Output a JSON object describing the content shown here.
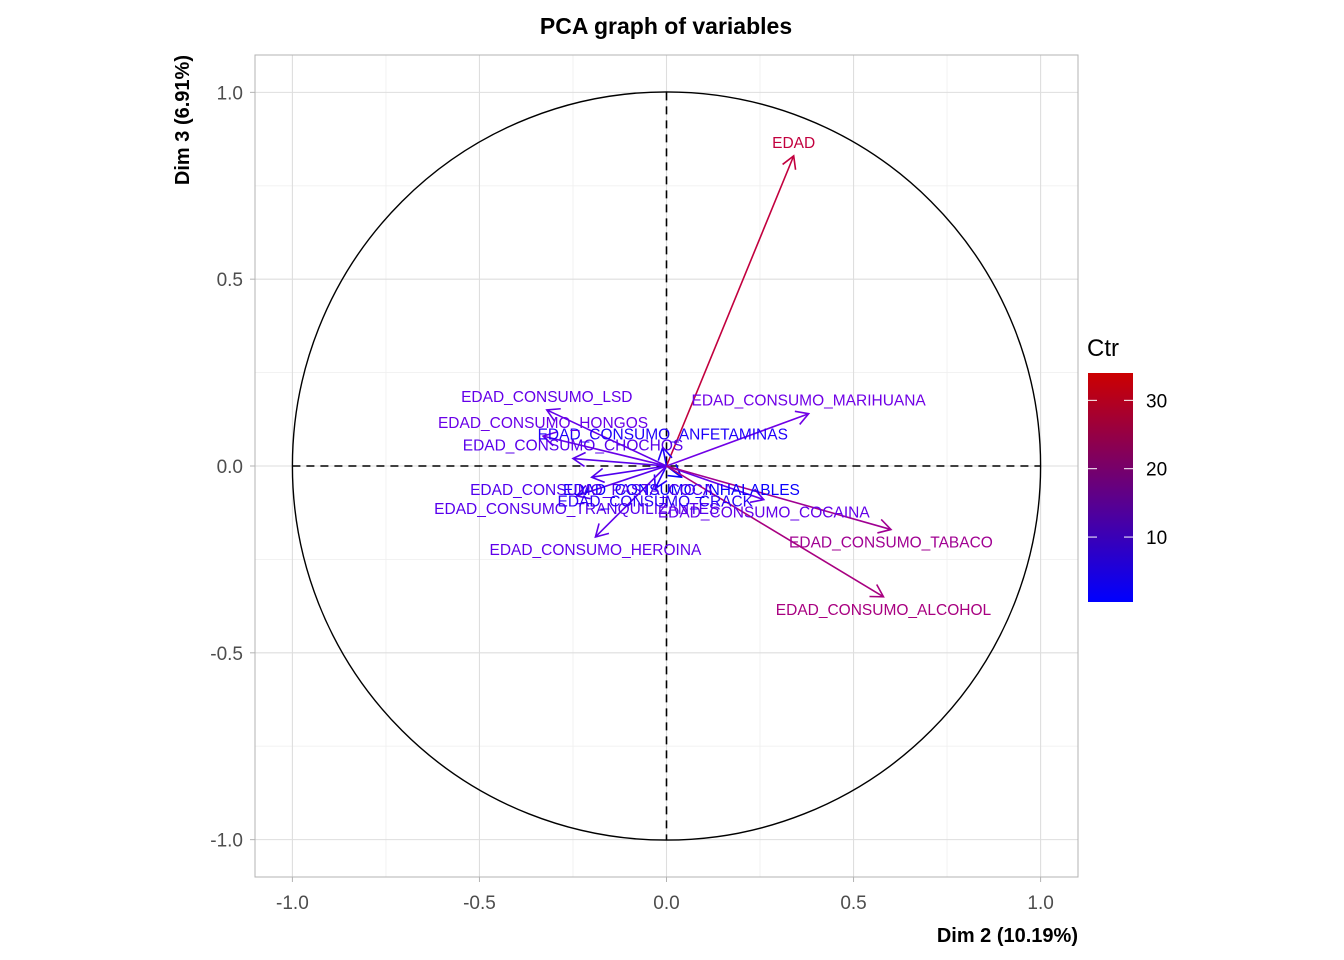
{
  "chart_data": {
    "type": "scatter",
    "subtype": "pca-variable-correlation-circle",
    "title": "PCA graph of variables",
    "xlabel": "Dim 2 (10.19%)",
    "ylabel": "Dim 3 (6.91%)",
    "xlim": [
      -1.1,
      1.1
    ],
    "ylim": [
      -1.1,
      1.1
    ],
    "x_ticks": [
      -1.0,
      -0.5,
      0.0,
      0.5,
      1.0
    ],
    "x_tick_labels": [
      "-1.0",
      "-0.5",
      "0.0",
      "0.5",
      "1.0"
    ],
    "y_ticks": [
      -1.0,
      -0.5,
      0.0,
      0.5,
      1.0
    ],
    "y_tick_labels": [
      "-1.0",
      "-0.5",
      "0.0",
      "0.5",
      "1.0"
    ],
    "grid": true,
    "unit_circle": true,
    "variables": [
      {
        "name": "EDAD",
        "x": 0.34,
        "y": 0.83,
        "ctr": 33,
        "color": "#c2003e"
      },
      {
        "name": "EDAD_CONSUMO_MARIHUANA",
        "x": 0.38,
        "y": 0.14,
        "ctr": 5,
        "color": "#7000e6"
      },
      {
        "name": "EDAD_CONSUMO_LSD",
        "x": -0.32,
        "y": 0.15,
        "ctr": 4,
        "color": "#6400e9"
      },
      {
        "name": "EDAD_CONSUMO_ANFETAMINAS",
        "x": -0.01,
        "y": 0.05,
        "ctr": 1,
        "color": "#1e00fa"
      },
      {
        "name": "EDAD_CONSUMO_HONGOS",
        "x": -0.33,
        "y": 0.08,
        "ctr": 4,
        "color": "#6a00e8"
      },
      {
        "name": "EDAD_CONSUMO_CHOCHOS",
        "x": -0.25,
        "y": 0.02,
        "ctr": 3,
        "color": "#5a00eb"
      },
      {
        "name": "EDAD_CONSUMO_INHALABLES",
        "x": 0.04,
        "y": -0.03,
        "ctr": 0.5,
        "color": "#0a00fd"
      },
      {
        "name": "EDAD_CONSUMO_PASTA_COCA",
        "x": -0.2,
        "y": -0.03,
        "ctr": 3,
        "color": "#5000ee"
      },
      {
        "name": "EDAD_CONSUMO_TRANQUILIZANTES",
        "x": -0.24,
        "y": -0.08,
        "ctr": 3,
        "color": "#5800ec"
      },
      {
        "name": "EDAD_CONSUMO_CRACK",
        "x": -0.03,
        "y": -0.06,
        "ctr": 1,
        "color": "#2a00f8"
      },
      {
        "name": "EDAD_CONSUMO_HEROINA",
        "x": -0.19,
        "y": -0.19,
        "ctr": 4,
        "color": "#6000ea"
      },
      {
        "name": "EDAD_CONSUMO_COCAINA",
        "x": 0.26,
        "y": -0.09,
        "ctr": 4,
        "color": "#6400e9"
      },
      {
        "name": "EDAD_CONSUMO_TABACO",
        "x": 0.6,
        "y": -0.17,
        "ctr": 16,
        "color": "#a00092"
      },
      {
        "name": "EDAD_CONSUMO_ALCOHOL",
        "x": 0.58,
        "y": -0.35,
        "ctr": 19,
        "color": "#a80080"
      }
    ],
    "legend": {
      "title": "Ctr",
      "placement": "right",
      "ticks": [
        10,
        20,
        30
      ],
      "tick_labels": [
        "10",
        "20",
        "30"
      ],
      "range": [
        0.5,
        34
      ],
      "low_color": "#0000ff",
      "high_color": "#cc0000"
    }
  }
}
